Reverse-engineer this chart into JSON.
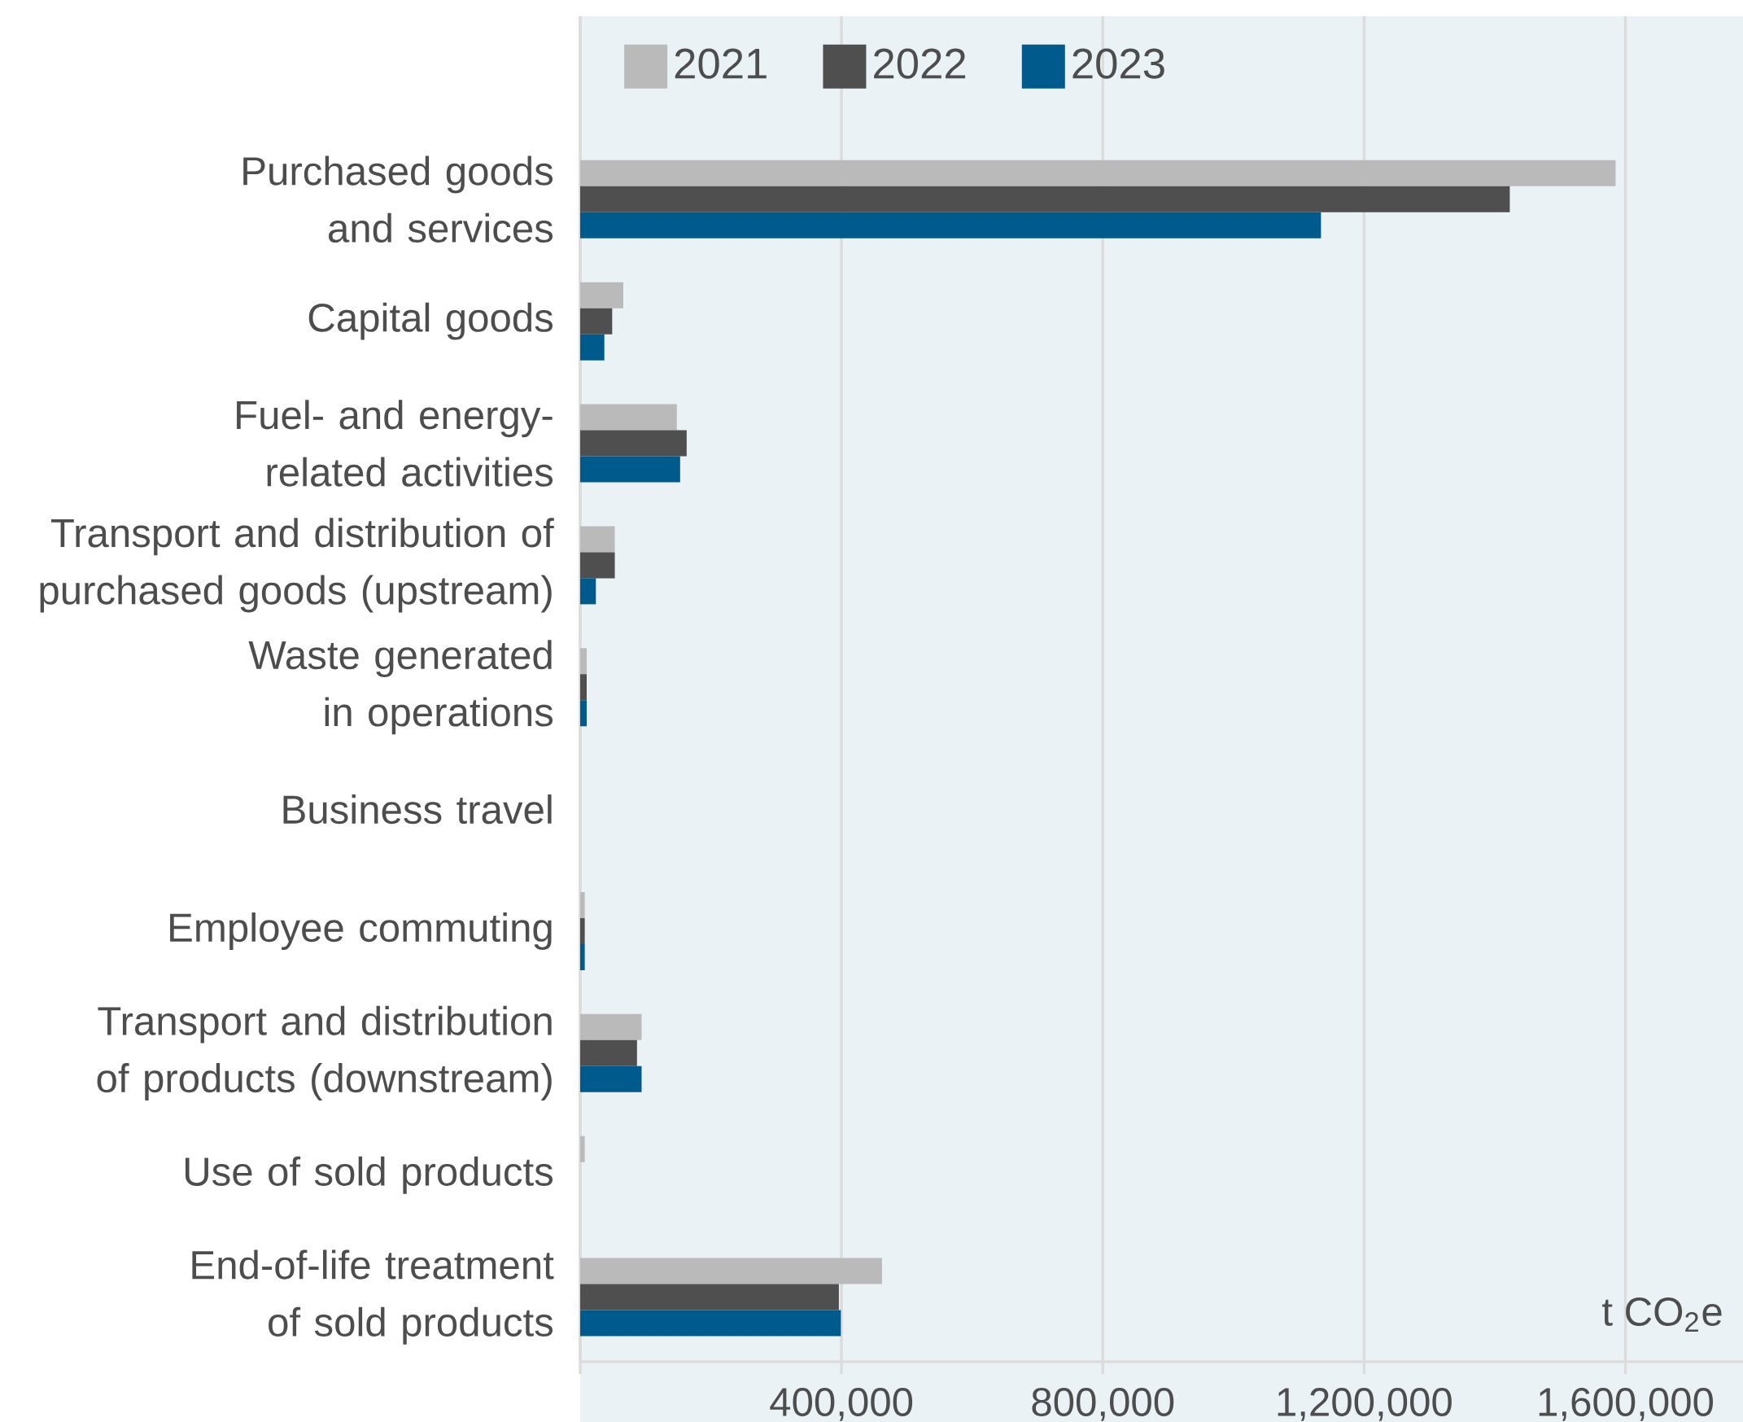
{
  "chart_data": {
    "type": "bar",
    "orientation": "horizontal",
    "xlabel": "t CO$_{2}$e",
    "categories": [
      "Purchased goods and services",
      "Capital goods",
      "Fuel- and energy-related activities",
      "Transport and distribution of purchased goods (upstream)",
      "Waste generated in operations",
      "Business travel",
      "Employee commuting",
      "Transport and distribution of products (downstream)",
      "Use of sold products",
      "End-of-life treatment of sold products"
    ],
    "series": [
      {
        "name": "2021",
        "color": "#bababa",
        "values": [
          1585000,
          66000,
          148000,
          53000,
          10000,
          0,
          7000,
          94000,
          7000,
          462000
        ]
      },
      {
        "name": "2022",
        "color": "#4f4f4f",
        "values": [
          1423000,
          49000,
          163000,
          53000,
          10000,
          0,
          7000,
          87000,
          0,
          396000
        ]
      },
      {
        "name": "2023",
        "color": "#005a8c",
        "values": [
          1134000,
          37000,
          153000,
          24000,
          10000,
          0,
          7000,
          94000,
          0,
          399000
        ]
      }
    ],
    "xlim": [
      0,
      1780000
    ],
    "xticks": [
      {
        "value": 0,
        "label": null
      },
      {
        "value": 400000,
        "label": "400,000"
      },
      {
        "value": 800000,
        "label": "800,000"
      },
      {
        "value": 1200000,
        "label": "1,200,000"
      },
      {
        "value": 1600000,
        "label": "1,600,000"
      }
    ],
    "grid": "x",
    "legend": "top"
  }
}
